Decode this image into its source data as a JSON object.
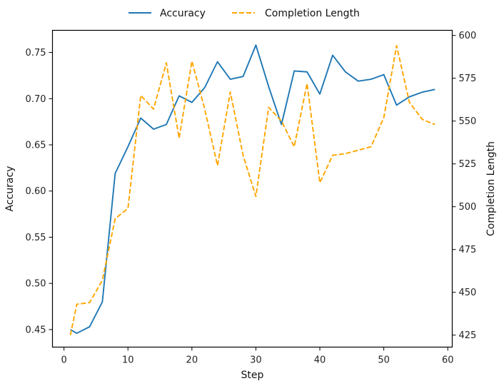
{
  "chart_data": {
    "type": "line",
    "xlabel": "Step",
    "ylabel": "Accuracy",
    "y2label": "Completion Length",
    "xlim": [
      -1.8,
      60.7
    ],
    "ylim": [
      0.431,
      0.774
    ],
    "y2lim": [
      418,
      603
    ],
    "xticks": [
      0,
      10,
      20,
      30,
      40,
      50,
      60
    ],
    "yticks": [
      0.45,
      0.5,
      0.55,
      0.6,
      0.65,
      0.7,
      0.75
    ],
    "y2ticks": [
      425,
      450,
      475,
      500,
      525,
      550,
      575,
      600
    ],
    "legend_position": "top-center",
    "grid": false,
    "series": [
      {
        "name": "Accuracy",
        "axis": "left",
        "color": "#1f77b4",
        "style": "solid",
        "x": [
          1,
          2,
          4,
          6,
          8,
          10,
          12,
          14,
          16,
          18,
          20,
          22,
          24,
          26,
          28,
          30,
          32,
          34,
          36,
          38,
          40,
          42,
          44,
          46,
          48,
          50,
          52,
          54,
          56,
          58
        ],
        "y": [
          0.45,
          0.446,
          0.453,
          0.48,
          0.619,
          0.648,
          0.679,
          0.667,
          0.672,
          0.703,
          0.696,
          0.712,
          0.74,
          0.721,
          0.724,
          0.758,
          0.713,
          0.672,
          0.73,
          0.729,
          0.705,
          0.747,
          0.729,
          0.719,
          0.721,
          0.726,
          0.693,
          0.702,
          0.707,
          0.71
        ]
      },
      {
        "name": "Completion Length",
        "axis": "right",
        "color": "#ffa500",
        "style": "dashed",
        "x": [
          1,
          2,
          4,
          6,
          8,
          10,
          12,
          14,
          16,
          18,
          20,
          22,
          24,
          26,
          28,
          30,
          32,
          34,
          36,
          38,
          40,
          42,
          44,
          46,
          48,
          50,
          52,
          54,
          56,
          58
        ],
        "y": [
          425,
          443,
          444,
          457,
          493,
          499,
          565,
          557,
          584,
          540,
          585,
          557,
          524,
          567,
          530,
          506,
          558,
          550,
          535,
          572,
          514,
          530,
          531,
          533,
          535,
          552,
          594,
          561,
          551,
          548
        ]
      }
    ]
  }
}
